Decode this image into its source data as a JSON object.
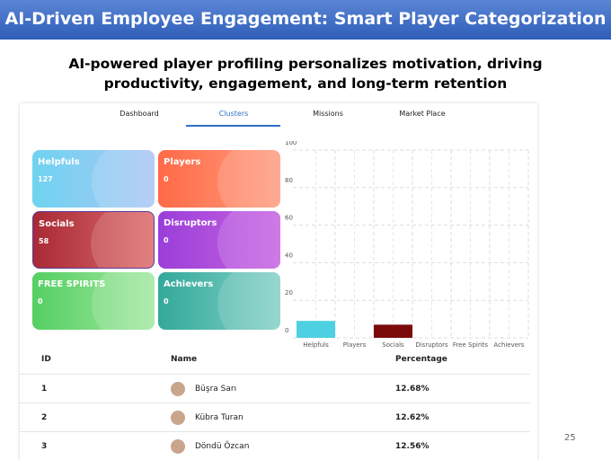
{
  "header": {
    "title": "AI-Driven Employee Engagement: Smart Player Categorization",
    "subtitle": "AI-powered player profiling personalizes motivation, driving productivity, engagement, and long-term retention"
  },
  "tabs": [
    "Dashboard",
    "Clusters",
    "Missions",
    "Market Place"
  ],
  "cards": [
    {
      "label": "Helpfuls",
      "value": "127"
    },
    {
      "label": "Players",
      "value": "0"
    },
    {
      "label": "Socials",
      "value": "58"
    },
    {
      "label": "Disruptors",
      "value": "0"
    },
    {
      "label": "FREE SPIRITS",
      "value": "0"
    },
    {
      "label": "Achievers",
      "value": "0"
    }
  ],
  "chart_data": {
    "type": "bar",
    "categories": [
      "Helpfuls",
      "Players",
      "Socials",
      "Disruptors",
      "Free Spirits",
      "Achievers"
    ],
    "values": [
      9,
      0,
      7,
      0,
      0,
      0
    ],
    "colors": [
      "#4dd0e1",
      "#4dd0e1",
      "#7b0a0a",
      "#7b0a0a",
      "#7b0a0a",
      "#7b0a0a"
    ],
    "ylim": [
      0,
      100
    ],
    "yticks": [
      0,
      20,
      40,
      60,
      80,
      100
    ],
    "grid": true
  },
  "table": {
    "columns": [
      "ID",
      "Name",
      "Percentage"
    ],
    "rows": [
      [
        "1",
        "Büşra Sarı",
        "12.68%"
      ],
      [
        "2",
        "Kübra Turan",
        "12.62%"
      ],
      [
        "3",
        "Döndü Özcan",
        "12.56%"
      ]
    ]
  },
  "page_number": "25"
}
